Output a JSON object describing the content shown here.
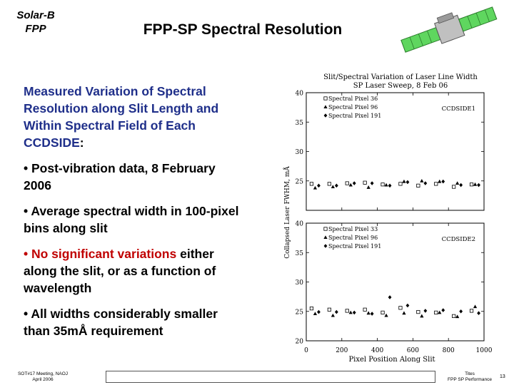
{
  "header": {
    "brand_line1": "Solar-B",
    "brand_line2": "FPP",
    "title": "FPP-SP Spectral Resolution"
  },
  "body": {
    "heading_main": "Measured Variation of Spectral Resolution along Slit Length and Within Spectral Field of Each CCDSIDE",
    "heading_colon": ":",
    "bullet1": "• Post-vibration data, 8 February 2006",
    "bullet2": "• Average spectral width in 100-pixel bins along slit",
    "bullet3_red": "• No significant variations",
    "bullet3_rest": " either along the slit, or as a function of wavelength",
    "bullet4": "• All widths considerably smaller than 35mÅ requirement"
  },
  "footer": {
    "left_line1": "SOT#17 Meeting, NAOJ",
    "left_line2": "April 2006",
    "right_line1": "Tites",
    "right_line2": "FPP SP Performance",
    "page": "13"
  },
  "chart_data": {
    "type": "scatter",
    "title_line1": "Slit/Spectral Variation of Laser Line Width",
    "title_line2": "SP Laser Sweep, 8 Feb 06",
    "xlabel": "Pixel Position Along Slit",
    "ylabel": "Collapsed Laser FWHM, mÅ",
    "xlim": [
      0,
      1000
    ],
    "ylim": [
      20,
      40
    ],
    "xticks": [
      "0",
      "200",
      "400",
      "600",
      "800",
      "1000"
    ],
    "yticks": [
      "20",
      "25",
      "30",
      "35",
      "40"
    ],
    "x": [
      50,
      150,
      250,
      350,
      450,
      550,
      650,
      750,
      850,
      950
    ],
    "panels": [
      {
        "label": "CCDSIDE1",
        "series": [
          {
            "name": "Spectral Pixel 36",
            "marker": "square",
            "values": [
              24.5,
              24.5,
              24.6,
              24.7,
              24.4,
              24.5,
              24.2,
              24.5,
              24.0,
              24.4
            ]
          },
          {
            "name": "Spectral Pixel 96",
            "marker": "triangle",
            "values": [
              23.8,
              24.0,
              24.3,
              23.9,
              24.3,
              24.9,
              25.0,
              24.9,
              24.6,
              24.4
            ]
          },
          {
            "name": "Spectral Pixel 191",
            "marker": "diamond",
            "values": [
              24.2,
              24.2,
              24.6,
              24.6,
              24.2,
              24.8,
              24.6,
              24.9,
              24.3,
              24.3
            ]
          }
        ]
      },
      {
        "label": "CCDSIDE2",
        "series": [
          {
            "name": "Spectral Pixel 33",
            "marker": "square",
            "values": [
              25.5,
              25.3,
              25.1,
              25.3,
              24.8,
              25.6,
              24.9,
              24.8,
              24.2,
              25.1
            ]
          },
          {
            "name": "Spectral Pixel 96",
            "marker": "triangle",
            "values": [
              24.6,
              24.3,
              24.8,
              24.7,
              24.3,
              24.7,
              24.2,
              24.8,
              24.1,
              25.8
            ]
          },
          {
            "name": "Spectral Pixel 191",
            "marker": "diamond",
            "values": [
              24.9,
              24.9,
              24.8,
              24.6,
              27.4,
              26.0,
              25.1,
              25.2,
              25.0,
              24.7
            ]
          }
        ]
      }
    ]
  }
}
